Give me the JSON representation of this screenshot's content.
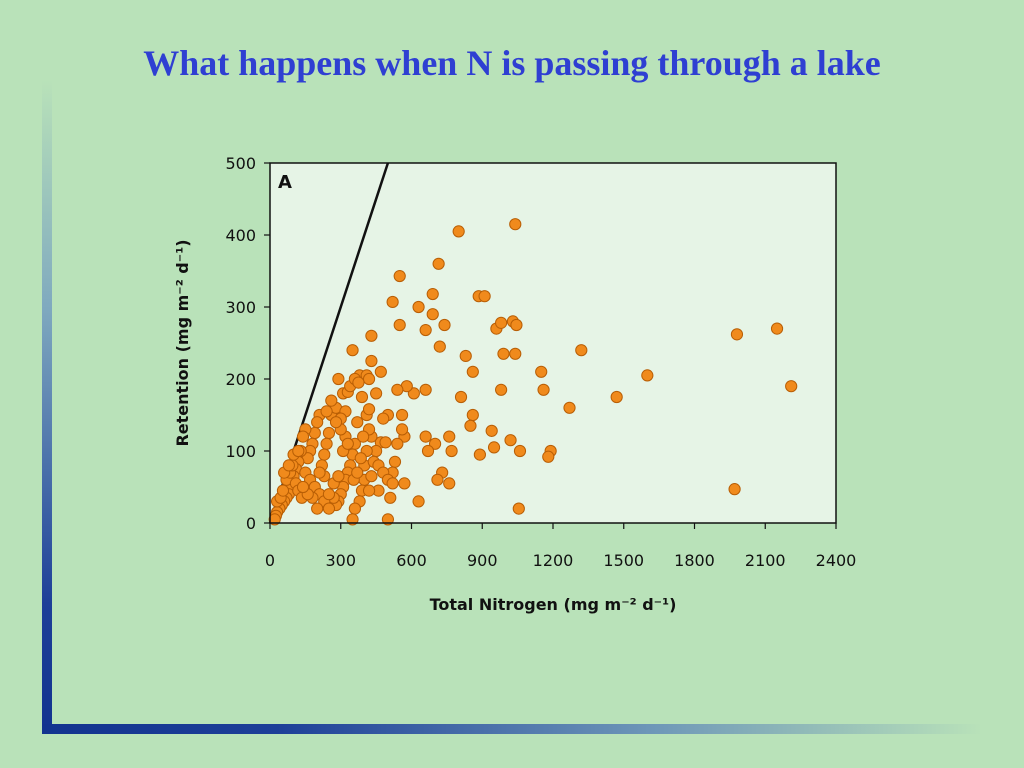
{
  "slide": {
    "title": "What happens when N is passing through a lake",
    "background_color": "#b9e2b9",
    "title_color": "#2f3fd2"
  },
  "chart_data": {
    "type": "scatter",
    "panel_label": "A",
    "xlabel": "Total Nitrogen (mg m⁻² d⁻¹)",
    "ylabel": "Retention (mg m⁻² d⁻¹)",
    "xlim": [
      0,
      2400
    ],
    "ylim": [
      0,
      500
    ],
    "x_ticks": [
      0,
      300,
      600,
      900,
      1200,
      1500,
      1800,
      2100,
      2400
    ],
    "y_ticks": [
      0,
      100,
      200,
      300,
      400,
      500
    ],
    "grid": false,
    "plot_background": "#e6f4e6",
    "marker_color": "#f08a1c",
    "marker_edge_color": "#b85e05",
    "reference_line": {
      "type": "1:1",
      "points": [
        [
          0,
          0
        ],
        [
          500,
          500
        ]
      ],
      "color": "#111111"
    },
    "points": [
      [
        1040,
        415
      ],
      [
        800,
        405
      ],
      [
        715,
        360
      ],
      [
        550,
        343
      ],
      [
        885,
        315
      ],
      [
        910,
        315
      ],
      [
        690,
        318
      ],
      [
        520,
        307
      ],
      [
        630,
        300
      ],
      [
        690,
        290
      ],
      [
        550,
        275
      ],
      [
        740,
        275
      ],
      [
        960,
        270
      ],
      [
        980,
        278
      ],
      [
        1030,
        280
      ],
      [
        1045,
        275
      ],
      [
        1320,
        240
      ],
      [
        1980,
        262
      ],
      [
        2150,
        270
      ],
      [
        2210,
        190
      ],
      [
        1600,
        205
      ],
      [
        1470,
        175
      ],
      [
        1270,
        160
      ],
      [
        1150,
        210
      ],
      [
        1160,
        185
      ],
      [
        830,
        232
      ],
      [
        860,
        210
      ],
      [
        660,
        268
      ],
      [
        720,
        245
      ],
      [
        990,
        235
      ],
      [
        1040,
        235
      ],
      [
        980,
        185
      ],
      [
        810,
        175
      ],
      [
        660,
        185
      ],
      [
        610,
        180
      ],
      [
        580,
        190
      ],
      [
        540,
        185
      ],
      [
        470,
        210
      ],
      [
        430,
        260
      ],
      [
        350,
        240
      ],
      [
        380,
        205
      ],
      [
        290,
        200
      ],
      [
        310,
        180
      ],
      [
        330,
        182
      ],
      [
        390,
        175
      ],
      [
        430,
        225
      ],
      [
        410,
        205
      ],
      [
        420,
        200
      ],
      [
        450,
        180
      ],
      [
        860,
        150
      ],
      [
        850,
        135
      ],
      [
        940,
        128
      ],
      [
        950,
        105
      ],
      [
        1020,
        115
      ],
      [
        1060,
        100
      ],
      [
        1190,
        100
      ],
      [
        1180,
        92
      ],
      [
        1970,
        47
      ],
      [
        1055,
        20
      ],
      [
        890,
        95
      ],
      [
        760,
        120
      ],
      [
        770,
        100
      ],
      [
        730,
        70
      ],
      [
        700,
        110
      ],
      [
        710,
        60
      ],
      [
        760,
        55
      ],
      [
        660,
        120
      ],
      [
        670,
        100
      ],
      [
        630,
        30
      ],
      [
        570,
        55
      ],
      [
        560,
        150
      ],
      [
        570,
        120
      ],
      [
        560,
        130
      ],
      [
        540,
        110
      ],
      [
        530,
        85
      ],
      [
        520,
        70
      ],
      [
        500,
        150
      ],
      [
        480,
        145
      ],
      [
        470,
        112
      ],
      [
        490,
        112
      ],
      [
        450,
        100
      ],
      [
        430,
        120
      ],
      [
        420,
        130
      ],
      [
        410,
        150
      ],
      [
        420,
        158
      ],
      [
        410,
        100
      ],
      [
        400,
        80
      ],
      [
        400,
        60
      ],
      [
        390,
        45
      ],
      [
        380,
        30
      ],
      [
        360,
        20
      ],
      [
        350,
        5
      ],
      [
        500,
        5
      ],
      [
        510,
        35
      ],
      [
        460,
        45
      ],
      [
        430,
        65
      ],
      [
        420,
        45
      ],
      [
        370,
        140
      ],
      [
        360,
        110
      ],
      [
        350,
        95
      ],
      [
        340,
        80
      ],
      [
        330,
        70
      ],
      [
        320,
        60
      ],
      [
        310,
        50
      ],
      [
        300,
        40
      ],
      [
        290,
        30
      ],
      [
        280,
        25
      ],
      [
        270,
        35
      ],
      [
        260,
        150
      ],
      [
        250,
        125
      ],
      [
        240,
        110
      ],
      [
        230,
        95
      ],
      [
        220,
        80
      ],
      [
        210,
        150
      ],
      [
        200,
        140
      ],
      [
        190,
        125
      ],
      [
        180,
        110
      ],
      [
        170,
        100
      ],
      [
        160,
        90
      ],
      [
        150,
        130
      ],
      [
        140,
        120
      ],
      [
        130,
        100
      ],
      [
        120,
        85
      ],
      [
        110,
        75
      ],
      [
        100,
        65
      ],
      [
        90,
        50
      ],
      [
        80,
        40
      ],
      [
        70,
        35
      ],
      [
        60,
        30
      ],
      [
        50,
        25
      ],
      [
        40,
        20
      ],
      [
        30,
        15
      ],
      [
        25,
        10
      ],
      [
        20,
        5
      ],
      [
        30,
        30
      ],
      [
        45,
        35
      ],
      [
        55,
        45
      ],
      [
        70,
        60
      ],
      [
        85,
        70
      ],
      [
        95,
        80
      ],
      [
        110,
        55
      ],
      [
        120,
        45
      ],
      [
        135,
        35
      ],
      [
        150,
        70
      ],
      [
        170,
        60
      ],
      [
        190,
        50
      ],
      [
        210,
        40
      ],
      [
        230,
        30
      ],
      [
        250,
        20
      ],
      [
        270,
        55
      ],
      [
        290,
        65
      ],
      [
        310,
        100
      ],
      [
        320,
        120
      ],
      [
        330,
        110
      ],
      [
        280,
        160
      ],
      [
        300,
        130
      ],
      [
        260,
        170
      ],
      [
        240,
        155
      ],
      [
        340,
        190
      ],
      [
        360,
        200
      ],
      [
        375,
        195
      ],
      [
        320,
        155
      ],
      [
        300,
        145
      ],
      [
        280,
        140
      ],
      [
        355,
        60
      ],
      [
        370,
        70
      ],
      [
        385,
        90
      ],
      [
        395,
        120
      ],
      [
        440,
        85
      ],
      [
        460,
        80
      ],
      [
        480,
        70
      ],
      [
        500,
        60
      ],
      [
        520,
        55
      ],
      [
        200,
        20
      ],
      [
        180,
        35
      ],
      [
        160,
        40
      ],
      [
        140,
        50
      ],
      [
        230,
        65
      ],
      [
        250,
        40
      ],
      [
        210,
        70
      ],
      [
        60,
        70
      ],
      [
        80,
        80
      ],
      [
        100,
        95
      ],
      [
        120,
        100
      ]
    ]
  }
}
